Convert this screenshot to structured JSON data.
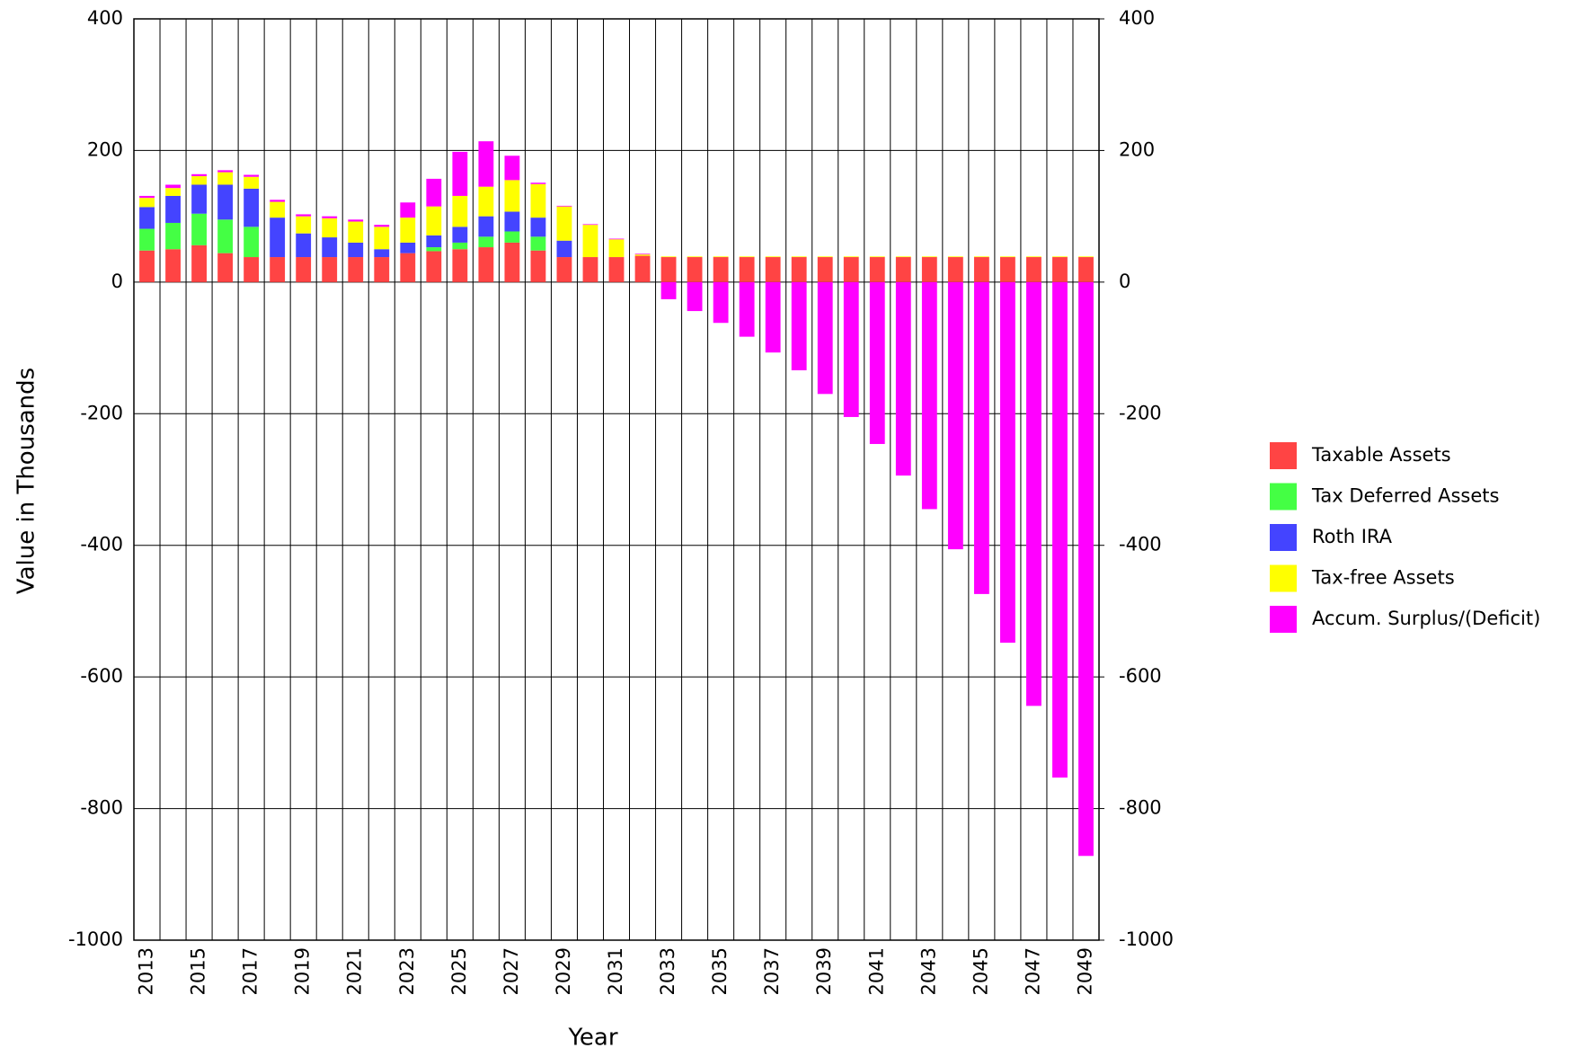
{
  "chart_data": {
    "type": "stacked_bar",
    "x_label": "Year",
    "y_label": "Value in Thousands",
    "categories": [
      "2013",
      null,
      "2015",
      null,
      "2017",
      null,
      "2019",
      null,
      "2021",
      null,
      "2023",
      null,
      "2025",
      null,
      "2027",
      null,
      "2029",
      null,
      "2031",
      null,
      "2033",
      null,
      "2035",
      null,
      "2037",
      null,
      "2039",
      null,
      "2041",
      null,
      "2043",
      null,
      "2045",
      null,
      "2047",
      null,
      "2049"
    ],
    "series": [
      {
        "name": "Taxable Assets",
        "color": "#ff4444",
        "values": [
          48,
          50,
          56,
          44,
          38,
          38,
          38,
          38,
          38,
          38,
          44,
          47,
          50,
          53,
          60,
          48,
          38,
          38,
          38,
          40,
          38,
          38,
          38,
          38,
          38,
          38,
          38,
          38,
          38,
          38,
          38,
          38,
          38,
          38,
          38,
          38,
          38
        ]
      },
      {
        "name": "Tax Deferred Assets",
        "color": "#44ff44",
        "values": [
          33,
          40,
          48,
          51,
          46,
          0,
          0,
          0,
          0,
          0,
          0,
          6,
          10,
          16,
          17,
          21,
          0,
          0,
          0,
          0,
          0,
          0,
          0,
          0,
          0,
          0,
          0,
          0,
          0,
          0,
          0,
          0,
          0,
          0,
          0,
          0,
          0
        ]
      },
      {
        "name": "Roth IRA",
        "color": "#4444ff",
        "values": [
          33,
          41,
          44,
          53,
          58,
          60,
          36,
          30,
          22,
          12,
          16,
          18,
          24,
          31,
          30,
          29,
          25,
          0,
          0,
          0,
          0,
          0,
          0,
          0,
          0,
          0,
          0,
          0,
          0,
          0,
          0,
          0,
          0,
          0,
          0,
          0,
          0
        ]
      },
      {
        "name": "Tax-free Assets",
        "color": "#ffff00",
        "values": [
          14,
          12,
          13,
          19,
          18,
          24,
          26,
          29,
          32,
          34,
          38,
          44,
          47,
          45,
          48,
          51,
          52,
          49,
          27,
          2,
          1,
          1,
          1,
          1,
          1,
          1,
          1,
          1,
          1,
          1,
          1,
          1,
          1,
          1,
          1,
          1,
          1
        ]
      },
      {
        "name": "Accum. Surplus/(Deficit)",
        "color": "#ff00ff",
        "values": [
          3,
          5,
          3,
          3,
          3,
          3,
          3,
          3,
          3,
          3,
          23,
          42,
          67,
          69,
          37,
          2,
          1,
          1,
          1,
          1,
          -26,
          -44,
          -62,
          -83,
          -107,
          -134,
          -170,
          -205,
          -246,
          -294,
          -345,
          -406,
          -474,
          -548,
          -644,
          -753,
          -872
        ]
      }
    ],
    "ylim": [
      -1000,
      400
    ],
    "yticks": [
      -1000,
      -800,
      -600,
      -400,
      -200,
      0,
      200,
      400
    ],
    "y2lim": [
      -1000,
      400
    ],
    "y2ticks": [
      -1000,
      -800,
      -600,
      -400,
      -200,
      0,
      200,
      400
    ],
    "grid": true,
    "legend": "right"
  }
}
